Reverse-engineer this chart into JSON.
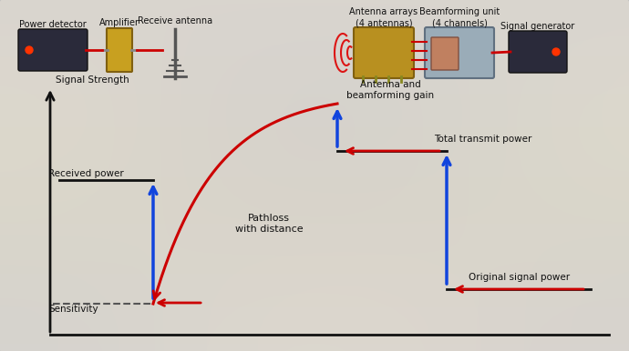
{
  "fig_width": 6.9,
  "fig_height": 3.86,
  "dpi": 100,
  "bg_outer": "#8a8880",
  "panel_face": "#dedad2",
  "panel_edge": "#aaaaaa",
  "text_color": "#111111",
  "signal_strength_label": "Signal Strength",
  "labels": {
    "received_power": "Received power",
    "sensitivity": "Sensitivity",
    "pathloss": "Pathloss\nwith distance",
    "antenna_gain": "Antenna and\nbeamforming gain",
    "total_transmit": "Total transmit power",
    "original_signal": "Original signal power"
  },
  "top_labels": {
    "power_detector": "Power detector",
    "amplifier": "Amplifier",
    "receive_antenna": "Receive antenna",
    "antenna_arrays": "Antenna arrays\n(4 antennas)",
    "beamforming_unit": "Beamforming unit\n(4 channels)",
    "signal_generator": "Signal generator"
  },
  "arrow_red": "#cc0000",
  "arrow_blue": "#1144dd",
  "line_black": "#111111",
  "axis_color": "#111111",
  "dash_color": "#555555",
  "wifi_color": "#dd0000",
  "pd_face": "#2a2a3a",
  "amp_face": "#c8a020",
  "ant_face": "#b89020",
  "bf_face": "#9aacb8",
  "bf_inner": "#c08060",
  "sg_face": "#2a2a3a",
  "cable_color": "#cc0000"
}
